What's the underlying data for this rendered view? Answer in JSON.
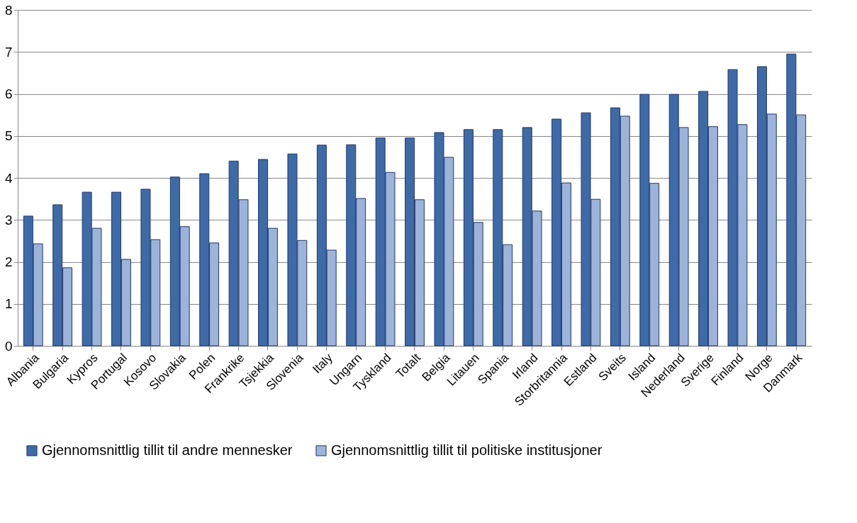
{
  "chart_data": {
    "type": "bar",
    "categories": [
      "Albania",
      "Bulgaria",
      "Kypros",
      "Portugal",
      "Kosovo",
      "Slovakia",
      "Polen",
      "Frankrike",
      "Tsjekkia",
      "Slovenia",
      "Italy",
      "Ungarn",
      "Tyskland",
      "Totalt",
      "Belgia",
      "Litauen",
      "Spania",
      "Irland",
      "Storbritannia",
      "Estland",
      "Sveits",
      "Island",
      "Nederland",
      "Sverige",
      "Finland",
      "Norge",
      "Danmark"
    ],
    "series": [
      {
        "name": "Gjennomsnittlig tillit til andre mennesker",
        "color": "#3e6aa8",
        "values": [
          3.09,
          3.36,
          3.66,
          3.66,
          3.73,
          4.02,
          4.1,
          4.4,
          4.44,
          4.57,
          4.78,
          4.79,
          4.95,
          4.95,
          5.08,
          5.15,
          5.15,
          5.2,
          5.4,
          5.55,
          5.67,
          5.99,
          5.99,
          6.06,
          6.58,
          6.65,
          6.95
        ]
      },
      {
        "name": "Gjennomsnittlig tillit til politiske institusjoner",
        "color": "#9db3da",
        "values": [
          2.43,
          1.86,
          2.8,
          2.06,
          2.53,
          2.84,
          2.45,
          3.48,
          2.8,
          2.51,
          2.28,
          3.51,
          4.13,
          3.48,
          4.49,
          2.94,
          2.41,
          3.21,
          3.88,
          3.49,
          5.47,
          3.87,
          5.2,
          5.22,
          5.27,
          5.52,
          5.5
        ]
      }
    ],
    "ylim": [
      0,
      8
    ],
    "yticks": [
      0,
      1,
      2,
      3,
      4,
      5,
      6,
      7,
      8
    ],
    "grid": "y",
    "legend": "bottom"
  }
}
